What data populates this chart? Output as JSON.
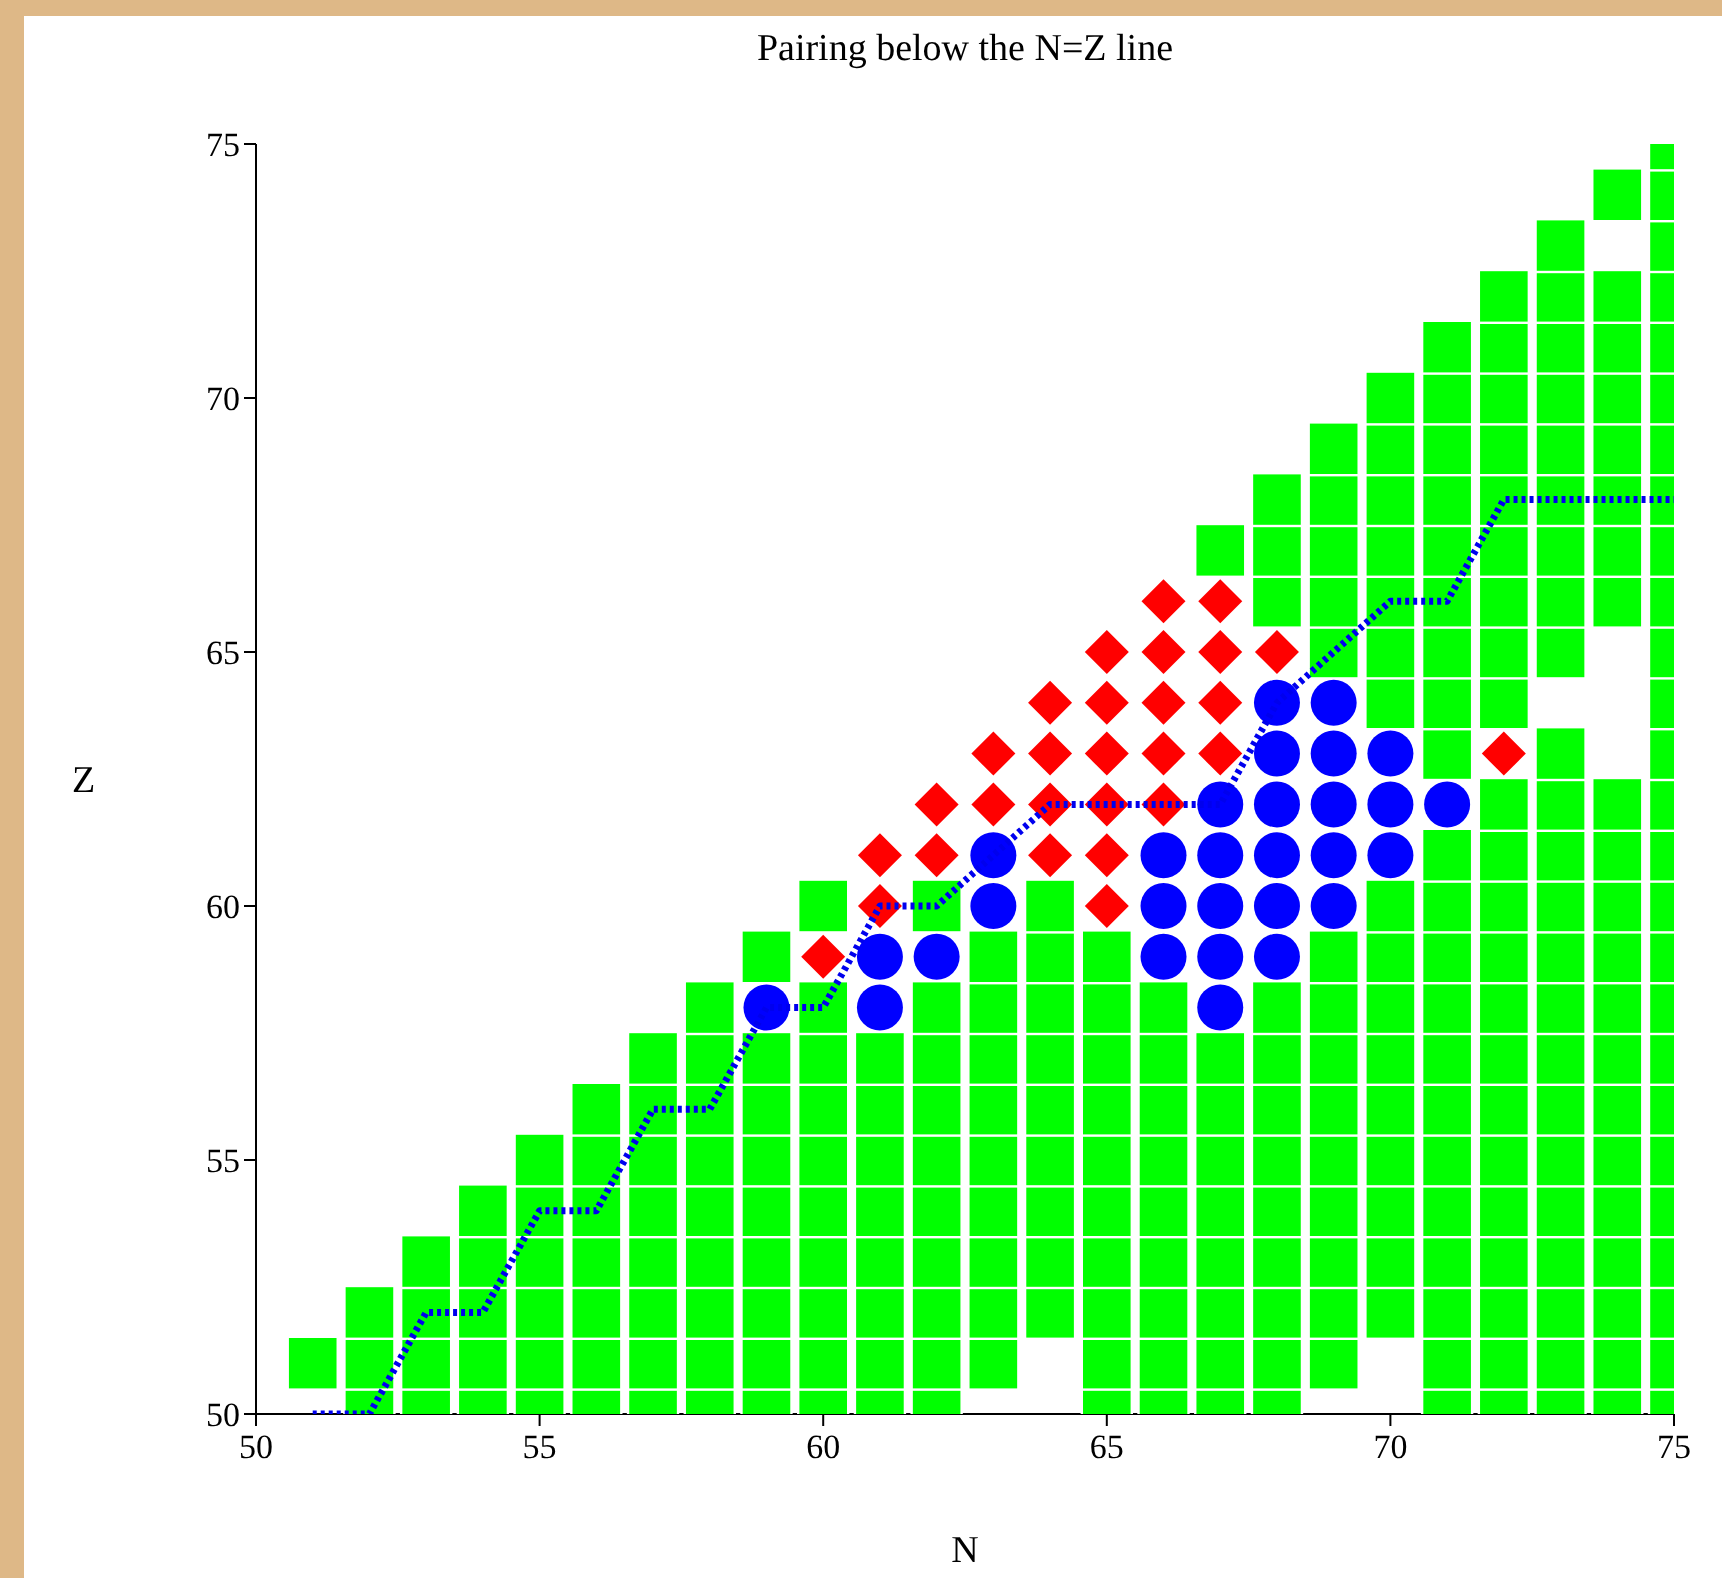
{
  "chart_data": {
    "type": "scatter",
    "title": "Pairing below the N=Z line",
    "xlabel": "N",
    "ylabel": "Z",
    "xlim": [
      50,
      75
    ],
    "xticks": [
      50,
      55,
      60,
      65,
      70,
      75
    ],
    "ylim": [
      50,
      75
    ],
    "yticks": [
      50,
      55,
      60,
      65,
      70,
      75
    ],
    "series": [
      {
        "marker": "square",
        "color": "#00ff00",
        "x": [
          51,
          52,
          52,
          52,
          53,
          53,
          53,
          53,
          54,
          54,
          54,
          54,
          54,
          55,
          55,
          55,
          55,
          55,
          55,
          56,
          56,
          56,
          56,
          56,
          56,
          56,
          57,
          57,
          57,
          57,
          57,
          57,
          57,
          57,
          58,
          58,
          58,
          58,
          58,
          58,
          58,
          58,
          58,
          59,
          59,
          59,
          59,
          59,
          59,
          59,
          59,
          59,
          60,
          60,
          60,
          60,
          60,
          60,
          60,
          60,
          60,
          60,
          61,
          61,
          61,
          61,
          61,
          61,
          61,
          61,
          62,
          62,
          62,
          62,
          62,
          62,
          62,
          62,
          62,
          62,
          63,
          63,
          63,
          63,
          63,
          63,
          63,
          63,
          63,
          64,
          64,
          64,
          64,
          64,
          64,
          64,
          64,
          64,
          65,
          65,
          65,
          65,
          65,
          65,
          65,
          65,
          65,
          65,
          66,
          66,
          66,
          66,
          66,
          66,
          66,
          66,
          66,
          67,
          67,
          67,
          67,
          67,
          67,
          67,
          67,
          67,
          68,
          68,
          68,
          68,
          68,
          68,
          68,
          68,
          68,
          68,
          68,
          68,
          69,
          69,
          69,
          69,
          69,
          69,
          69,
          69,
          69,
          69,
          69,
          69,
          69,
          69,
          70,
          70,
          70,
          70,
          70,
          70,
          70,
          70,
          70,
          70,
          70,
          70,
          70,
          70,
          70,
          70,
          71,
          71,
          71,
          71,
          71,
          71,
          71,
          71,
          71,
          71,
          71,
          71,
          71,
          71,
          71,
          71,
          71,
          71,
          71,
          71,
          71,
          72,
          72,
          72,
          72,
          72,
          72,
          72,
          72,
          72,
          72,
          72,
          72,
          72,
          72,
          72,
          72,
          72,
          72,
          72,
          72,
          72,
          72,
          73,
          73,
          73,
          73,
          73,
          73,
          73,
          73,
          73,
          73,
          73,
          73,
          73,
          73,
          73,
          73,
          73,
          73,
          73,
          73,
          73,
          73,
          73,
          74,
          74,
          74,
          74,
          74,
          74,
          74,
          74,
          74,
          74,
          74,
          74,
          74,
          74,
          74,
          74,
          74,
          74,
          74,
          74,
          74,
          75,
          75,
          75,
          75,
          75,
          75,
          75,
          75,
          75,
          75,
          75,
          75,
          75,
          75,
          75,
          75,
          75,
          75,
          75,
          75,
          75,
          75,
          75,
          75,
          75,
          75
        ],
        "values": [
          51,
          50,
          51,
          52,
          50,
          51,
          52,
          53,
          50,
          51,
          52,
          53,
          54,
          50,
          51,
          52,
          53,
          54,
          55,
          50,
          51,
          52,
          53,
          54,
          55,
          56,
          50,
          51,
          52,
          53,
          54,
          55,
          56,
          57,
          50,
          51,
          52,
          53,
          54,
          55,
          56,
          57,
          58,
          50,
          51,
          52,
          53,
          54,
          55,
          56,
          57,
          59,
          50,
          51,
          52,
          53,
          54,
          55,
          56,
          57,
          58,
          60,
          50,
          51,
          52,
          53,
          54,
          55,
          56,
          57,
          50,
          51,
          52,
          53,
          54,
          55,
          56,
          57,
          58,
          60,
          51,
          52,
          53,
          54,
          55,
          56,
          57,
          58,
          59,
          52,
          53,
          54,
          55,
          56,
          57,
          58,
          59,
          60,
          50,
          51,
          52,
          53,
          54,
          55,
          56,
          57,
          58,
          59,
          50,
          51,
          52,
          53,
          54,
          55,
          56,
          57,
          58,
          50,
          51,
          52,
          53,
          54,
          55,
          56,
          57,
          67,
          50,
          51,
          52,
          53,
          54,
          55,
          56,
          57,
          58,
          66,
          67,
          68,
          51,
          52,
          53,
          54,
          55,
          56,
          57,
          58,
          59,
          65,
          66,
          67,
          68,
          69,
          52,
          53,
          54,
          55,
          56,
          57,
          58,
          59,
          60,
          64,
          65,
          66,
          67,
          68,
          69,
          70,
          50,
          51,
          52,
          53,
          54,
          55,
          56,
          57,
          58,
          59,
          60,
          61,
          63,
          64,
          65,
          66,
          67,
          68,
          69,
          70,
          71,
          50,
          51,
          52,
          53,
          54,
          55,
          56,
          57,
          58,
          59,
          60,
          61,
          62,
          64,
          65,
          66,
          67,
          68,
          69,
          70,
          71,
          72,
          50,
          51,
          52,
          53,
          54,
          55,
          56,
          57,
          58,
          59,
          60,
          61,
          62,
          63,
          65,
          66,
          67,
          68,
          69,
          70,
          71,
          72,
          73,
          50,
          51,
          52,
          53,
          54,
          55,
          56,
          57,
          58,
          59,
          60,
          61,
          62,
          66,
          67,
          68,
          69,
          70,
          71,
          72,
          74,
          50,
          51,
          52,
          53,
          54,
          55,
          56,
          57,
          58,
          59,
          60,
          61,
          62,
          63,
          64,
          65,
          66,
          67,
          68,
          69,
          70,
          71,
          72,
          73,
          74,
          75
        ]
      },
      {
        "marker": "diamond",
        "color": "#ff0000",
        "x": [
          60,
          61,
          61,
          62,
          62,
          63,
          63,
          64,
          64,
          64,
          64,
          65,
          65,
          65,
          65,
          65,
          65,
          66,
          66,
          66,
          66,
          66,
          67,
          67,
          67,
          67,
          68,
          72
        ],
        "values": [
          59,
          60,
          61,
          61,
          62,
          62,
          63,
          61,
          62,
          63,
          64,
          60,
          61,
          62,
          63,
          64,
          65,
          62,
          63,
          64,
          65,
          66,
          63,
          64,
          65,
          66,
          65,
          63
        ]
      },
      {
        "marker": "circle",
        "color": "#0000ff",
        "x": [
          59,
          61,
          61,
          62,
          63,
          63,
          66,
          66,
          66,
          67,
          67,
          67,
          67,
          67,
          68,
          68,
          68,
          68,
          68,
          68,
          69,
          69,
          69,
          69,
          69,
          70,
          70,
          70,
          71
        ],
        "values": [
          58,
          58,
          59,
          59,
          60,
          61,
          59,
          60,
          61,
          58,
          59,
          60,
          61,
          62,
          59,
          60,
          61,
          62,
          63,
          64,
          60,
          61,
          62,
          63,
          64,
          61,
          62,
          63,
          62
        ]
      },
      {
        "type": "line",
        "marker": "none",
        "line_style": "dotted",
        "color": "#0000ee",
        "x": [
          51,
          52,
          53,
          54,
          55,
          56,
          57,
          58,
          59,
          60,
          61,
          62,
          64,
          67,
          68,
          70,
          71,
          72,
          75
        ],
        "values": [
          50,
          50,
          52,
          52,
          54,
          54,
          56,
          56,
          58,
          58,
          60,
          60,
          62,
          62,
          64,
          66,
          66,
          68,
          68
        ]
      }
    ]
  }
}
